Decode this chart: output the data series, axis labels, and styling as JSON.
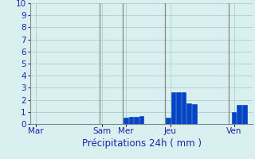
{
  "title": "",
  "xlabel": "Précipitations 24h ( mm )",
  "ylabel": "",
  "ylim": [
    0,
    10
  ],
  "background_color": "#d8f0f0",
  "grid_color": "#b8d0d0",
  "bar_color": "#0044cc",
  "bar_edge_color": "#0033aa",
  "day_labels": [
    "Mar",
    "Sam",
    "Mer",
    "Jeu",
    "Ven"
  ],
  "day_tick_positions": [
    0.5,
    13.0,
    17.5,
    26.0,
    38.0
  ],
  "vline_positions": [
    12.5,
    17.0,
    25.0,
    37.0
  ],
  "bars": [
    {
      "x": 17.5,
      "height": 0.5
    },
    {
      "x": 18.5,
      "height": 0.6
    },
    {
      "x": 19.5,
      "height": 0.6
    },
    {
      "x": 20.5,
      "height": 0.65
    },
    {
      "x": 25.5,
      "height": 0.55
    },
    {
      "x": 26.5,
      "height": 2.6
    },
    {
      "x": 27.5,
      "height": 2.65
    },
    {
      "x": 28.5,
      "height": 2.65
    },
    {
      "x": 29.5,
      "height": 1.7
    },
    {
      "x": 30.5,
      "height": 1.65
    },
    {
      "x": 38.0,
      "height": 1.0
    },
    {
      "x": 39.0,
      "height": 1.55
    },
    {
      "x": 40.0,
      "height": 1.55
    }
  ],
  "bar_width": 0.85,
  "yticks": [
    0,
    1,
    2,
    3,
    4,
    5,
    6,
    7,
    8,
    9,
    10
  ],
  "xlim": [
    -0.5,
    41.5
  ],
  "xlabel_color": "#2222aa",
  "tick_color": "#2222aa",
  "vline_color": "#888888",
  "xlabel_fontsize": 8.5,
  "ytick_fontsize": 7.5,
  "xtick_fontsize": 7.5
}
